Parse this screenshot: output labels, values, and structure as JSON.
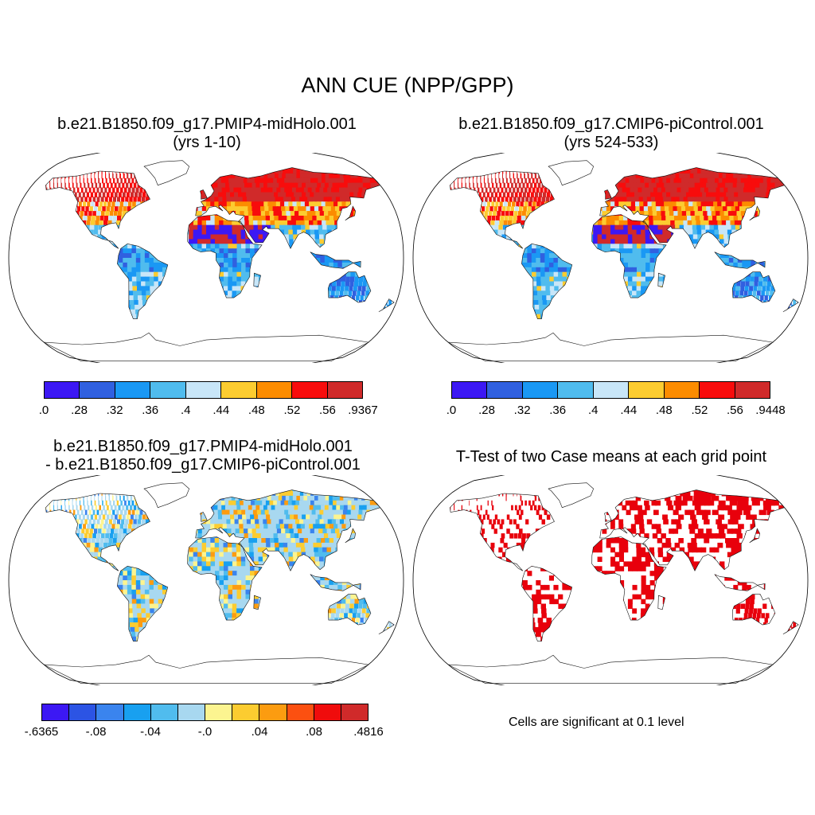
{
  "main_title": "ANN CUE (NPP/GPP)",
  "panels": {
    "top_left": {
      "title_line1": "b.e21.B1850.f09_g17.PMIP4-midHolo.001",
      "title_line2": "(yrs 1-10)",
      "colorbar": {
        "colors": [
          "#3c18f4",
          "#3060e0",
          "#1a98f4",
          "#50bcee",
          "#c8e6f8",
          "#fccc30",
          "#fc8c00",
          "#f80c0c",
          "#d02a2a"
        ],
        "labels": [
          ".0",
          ".28",
          ".32",
          ".36",
          ".4",
          ".44",
          ".48",
          ".52",
          ".56",
          ".9367"
        ]
      }
    },
    "top_right": {
      "title_line1": "b.e21.B1850.f09_g17.CMIP6-piControl.001",
      "title_line2": "(yrs 524-533)",
      "colorbar": {
        "colors": [
          "#3c18f4",
          "#3060e0",
          "#1a98f4",
          "#50bcee",
          "#c8e6f8",
          "#fccc30",
          "#fc8c00",
          "#f80c0c",
          "#d02a2a"
        ],
        "labels": [
          ".0",
          ".28",
          ".32",
          ".36",
          ".4",
          ".44",
          ".48",
          ".52",
          ".56",
          ".9448"
        ]
      }
    },
    "bottom_left": {
      "title_line1": "b.e21.B1850.f09_g17.PMIP4-midHolo.001",
      "title_line2": "- b.e21.B1850.f09_g17.CMIP6-piControl.001",
      "colorbar": {
        "colors": [
          "#3c18f4",
          "#2c54e4",
          "#3a84ee",
          "#18a0f0",
          "#50bcee",
          "#a8d8f0",
          "#fcf490",
          "#fccc30",
          "#fc9c10",
          "#fc5010",
          "#f00c0c",
          "#d02a2a"
        ],
        "labels": [
          "-.6365",
          "-.08",
          "-.04",
          "-.0",
          ".04",
          ".08",
          ".4816"
        ]
      }
    },
    "bottom_right": {
      "title_line1": "T-Test of two Case means at each grid point",
      "note": "Cells are significant at 0.1 level",
      "significance_color": "#e8000c"
    }
  }
}
